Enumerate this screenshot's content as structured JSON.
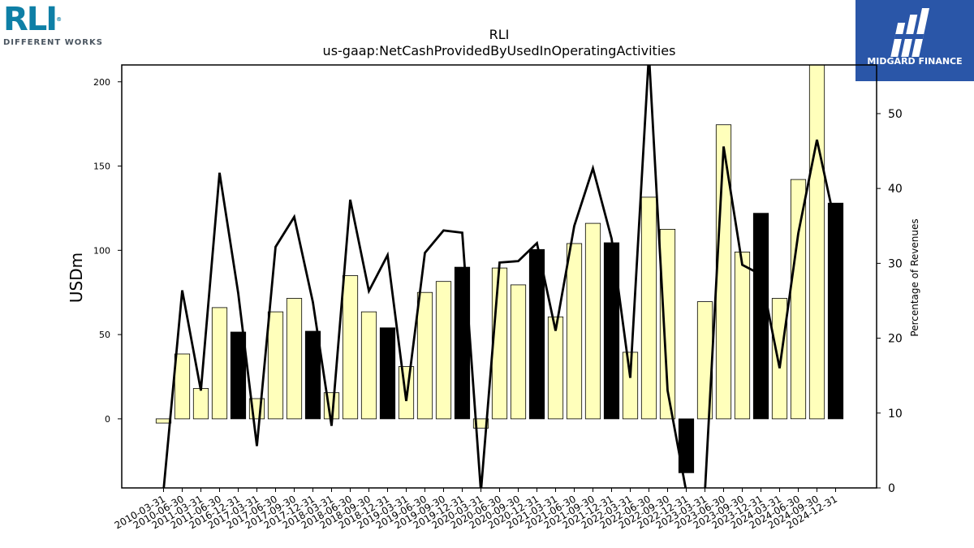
{
  "logos": {
    "left_brand": "RLI",
    "left_tagline": "DIFFERENT WORKS",
    "right_brand": "MIDGARD FINANCE"
  },
  "chart_data": {
    "type": "bar",
    "title": "RLI",
    "subtitle": "us-gaap:NetCashProvidedByUsedInOperatingActivities",
    "ylabel": "USDm",
    "y2label": "Percentage of Revenues",
    "ylim": [
      -41,
      210
    ],
    "y2lim": [
      0,
      56.5
    ],
    "yticks": [
      0,
      50,
      100,
      150,
      200
    ],
    "y2ticks": [
      0,
      10,
      20,
      30,
      40,
      50
    ],
    "grid": false,
    "categories": [
      "2010-03-31",
      "2010-06-30",
      "2011-03-31",
      "2011-06-30",
      "2016-12-31",
      "2017-03-31",
      "2017-06-30",
      "2017-09-30",
      "2017-12-31",
      "2018-03-31",
      "2018-06-30",
      "2018-09-30",
      "2018-12-31",
      "2019-03-31",
      "2019-06-30",
      "2019-09-30",
      "2019-12-31",
      "2020-03-31",
      "2020-06-30",
      "2020-09-30",
      "2020-12-31",
      "2021-03-31",
      "2021-06-30",
      "2021-09-30",
      "2021-12-31",
      "2022-03-31",
      "2022-06-30",
      "2022-09-30",
      "2022-12-31",
      "2023-03-31",
      "2023-06-30",
      "2023-09-30",
      "2023-12-31",
      "2024-03-31",
      "2024-06-30",
      "2024-09-30",
      "2024-12-31"
    ],
    "series": [
      {
        "type": "bar",
        "values": [
          -2.5,
          38.5,
          18,
          66,
          51.5,
          12,
          63.5,
          71.5,
          52,
          15.5,
          85,
          63.5,
          54,
          31,
          75,
          81.5,
          90,
          -5.5,
          89.5,
          79.5,
          100.5,
          60.5,
          104,
          116,
          104.5,
          39.5,
          131.5,
          112.5,
          -32,
          69.5,
          174.5,
          99,
          122,
          71.5,
          142,
          210,
          128
        ],
        "year_end": [
          false,
          false,
          false,
          false,
          true,
          false,
          false,
          false,
          true,
          false,
          false,
          false,
          true,
          false,
          false,
          false,
          true,
          false,
          false,
          false,
          true,
          false,
          false,
          false,
          true,
          false,
          false,
          false,
          true,
          false,
          false,
          false,
          true,
          false,
          false,
          false,
          true
        ],
        "colors": {
          "quarter": "#ffffbb",
          "year_end": "#000000",
          "edge": "#000000"
        }
      },
      {
        "type": "line",
        "axis": "right",
        "color": "#000000",
        "values": [
          -0.3,
          26.4,
          13.0,
          42.1,
          26.0,
          5.6,
          32.2,
          36.2,
          24.8,
          8.3,
          38.5,
          26.3,
          31.1,
          11.6,
          31.4,
          34.4,
          34.1,
          -0.5,
          30.1,
          30.3,
          32.7,
          21.0,
          35.0,
          42.7,
          33.3,
          14.7,
          58.0,
          13.0,
          -0.5,
          -0.5,
          45.6,
          29.8,
          28.5,
          16.0,
          34.0,
          46.5,
          35.0
        ]
      }
    ]
  }
}
